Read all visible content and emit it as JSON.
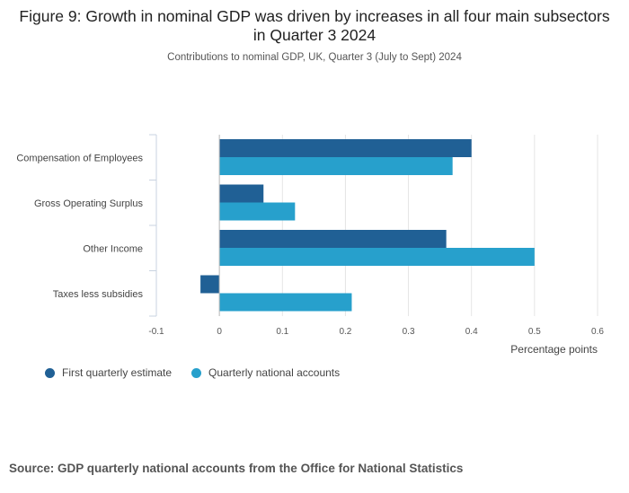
{
  "chart_data": {
    "type": "bar",
    "orientation": "horizontal",
    "title": "Figure 9: Growth in nominal GDP was driven by increases in all four main subsectors in Quarter 3 2024",
    "subtitle": "Contributions to nominal GDP, UK, Quarter 3 (July to Sept) 2024",
    "categories": [
      "Compensation of Employees",
      "Gross Operating Surplus",
      "Other Income",
      "Taxes less subsidies"
    ],
    "series": [
      {
        "name": "First quarterly estimate",
        "values": [
          0.4,
          0.07,
          0.36,
          -0.03
        ],
        "color": "#206095"
      },
      {
        "name": "Quarterly national accounts",
        "values": [
          0.37,
          0.12,
          0.5,
          0.21
        ],
        "color": "#27a0cc"
      }
    ],
    "xlabel": "Percentage points",
    "ylabel": "",
    "xlim": [
      -0.1,
      0.6
    ],
    "xticks": [
      "-0.1",
      "0",
      "0.1",
      "0.2",
      "0.3",
      "0.4",
      "0.5",
      "0.6"
    ],
    "grid": true,
    "legend_position": "bottom-left"
  },
  "source": "Source: GDP quarterly national accounts from the Office for National Statistics"
}
